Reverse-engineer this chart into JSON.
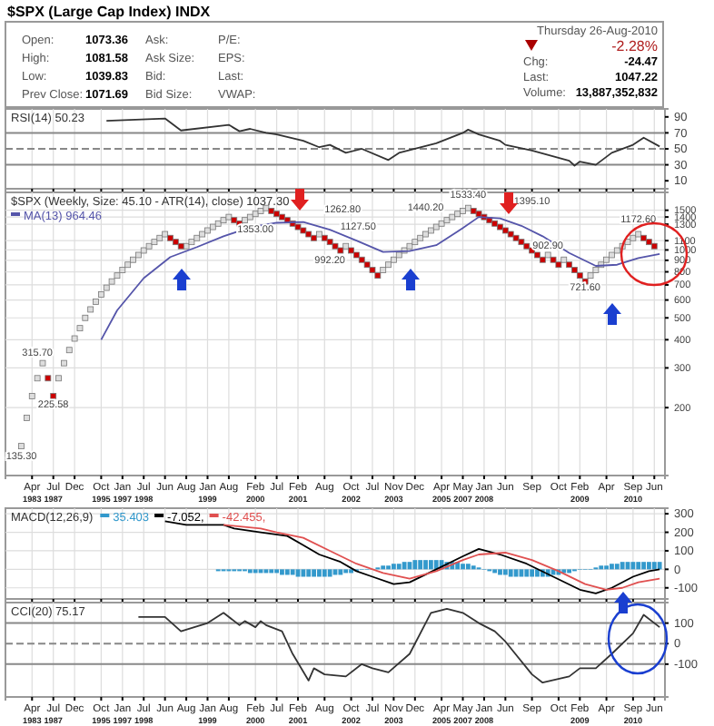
{
  "chart_data": [
    {
      "type": "other",
      "title": "$SPX (Large Cap Index) INDX",
      "annotations": [
        "Open:",
        "1073.36",
        "High:",
        "1081.58",
        "Low:",
        "1039.83",
        "Prev Close:",
        "1071.69",
        "Ask:",
        "Ask Size:",
        "Bid:",
        "Bid Size:",
        "P/E:",
        "EPS:",
        "Last:",
        "VWAP:",
        "Thursday 26-Aug-2010",
        "-2.28%",
        "Chg:",
        "-24.47",
        "Last:",
        "1047.22",
        "Volume:",
        "13,887,352,832"
      ]
    },
    {
      "type": "line",
      "title": "RSI(14) 50.23",
      "grid": "x",
      "tick_labels": "y",
      "ylim": [
        0,
        100
      ],
      "yticks": [
        10,
        30,
        50,
        70,
        90
      ],
      "ref_lines": [
        {
          "axis": "y",
          "value": 70,
          "color": "#888888",
          "line_style": "solid"
        },
        {
          "axis": "y",
          "value": 50,
          "color": "#888888",
          "line_style": "dashed"
        },
        {
          "axis": "y",
          "value": 30,
          "color": "#888888",
          "line_style": "solid"
        }
      ],
      "series": [
        {
          "color": "#333333",
          "values": [
            null,
            null,
            null,
            null,
            null,
            null,
            null,
            null,
            null,
            null,
            null,
            null,
            null,
            null,
            null,
            null,
            null,
            null,
            85,
            null,
            null,
            null,
            null,
            null,
            null,
            null,
            null,
            null,
            null,
            88,
            null,
            null,
            73,
            null,
            null,
            null,
            null,
            null,
            null,
            null,
            null,
            80,
            null,
            72,
            null,
            75,
            null,
            null,
            70,
            null,
            68,
            null,
            null,
            null,
            null,
            60,
            null,
            null,
            52,
            null,
            55,
            null,
            null,
            45,
            null,
            null,
            50,
            null,
            null,
            null,
            null,
            36,
            null,
            45,
            null,
            null,
            null,
            null,
            null,
            null,
            57,
            null,
            null,
            null,
            null,
            70,
            74,
            null,
            68,
            null,
            null,
            null,
            60,
            55,
            null,
            null,
            null,
            null,
            48,
            null,
            null,
            null,
            null,
            null,
            null,
            35,
            29,
            34,
            null,
            null,
            30,
            null,
            null,
            45,
            null,
            null,
            null,
            55,
            null,
            64,
            null,
            null,
            53
          ]
        }
      ]
    },
    {
      "type": "scatter",
      "title": "$SPX (Weekly, Size: 45.10 - ATR(14), close) 1037.30",
      "grid": true,
      "log": true,
      "legend": "top left",
      "ylim": [
        100,
        1800
      ],
      "yticks": [
        200,
        300,
        400,
        500,
        600,
        700,
        800,
        900,
        1000,
        1100,
        1300,
        1400,
        1500
      ],
      "categories": [
        null,
        null,
        null,
        null,
        "Apr 1983",
        null,
        null,
        null,
        "Jul 1987",
        null,
        null,
        null,
        "Dec",
        null,
        null,
        null,
        null,
        "Oct 1995",
        null,
        null,
        null,
        "Jan 1997",
        null,
        null,
        null,
        "Jul 1998",
        null,
        null,
        null,
        "Jun",
        null,
        null,
        null,
        "Aug",
        null,
        null,
        null,
        "Jan 1999",
        null,
        null,
        null,
        "Aug",
        null,
        null,
        null,
        null,
        "Feb 2000",
        null,
        null,
        null,
        "Jul",
        null,
        null,
        null,
        "Feb 2001",
        null,
        null,
        null,
        null,
        "Aug",
        null,
        null,
        null,
        null,
        "Oct 2002",
        null,
        null,
        null,
        "Jul",
        null,
        null,
        null,
        "Nov 2003",
        null,
        null,
        null,
        "Dec",
        null,
        null,
        null,
        null,
        "Apr 2005",
        null,
        null,
        null,
        "May 2007",
        null,
        null,
        null,
        "Jan 2008",
        null,
        null,
        null,
        "Jun",
        null,
        null,
        null,
        null,
        "Sep",
        null,
        null,
        null,
        null,
        "Oct",
        null,
        null,
        null,
        "Feb 2009",
        null,
        null,
        null,
        null,
        "Apr",
        null,
        null,
        null,
        null,
        "Sep 2010",
        null,
        null,
        null,
        "Jun",
        null
      ],
      "annotations": [
        "135.30",
        "315.70",
        "225.58",
        "1353.00",
        "1262.80",
        "1127.50",
        "992.20",
        "1533.40",
        "1440.20",
        "1395.10",
        "902.90",
        "721.60",
        "1172.60"
      ],
      "series": [
        {
          "type": "scatter",
          "marker": "square",
          "color": "#dddddd",
          "values": [
            null,
            null,
            135,
            180,
            225,
            270,
            315,
            null,
            null,
            270,
            315,
            360,
            405,
            450,
            500,
            545,
            590,
            635,
            680,
            725,
            770,
            815,
            860,
            905,
            950,
            995,
            1040,
            1085,
            1130,
            1175,
            null,
            null,
            null,
            1040,
            1085,
            1130,
            1175,
            1220,
            1265,
            1310,
            1355,
            1400,
            null,
            null,
            1355,
            1400,
            1445,
            1490,
            1535,
            null,
            null,
            null,
            null,
            null,
            null,
            null,
            null,
            null,
            1175,
            null,
            null,
            null,
            null,
            1040,
            null,
            null,
            null,
            null,
            null,
            null,
            815,
            860,
            905,
            950,
            995,
            1040,
            1085,
            1130,
            1175,
            1220,
            1265,
            1310,
            1355,
            1400,
            1445,
            1490,
            1535,
            null,
            null,
            null,
            null,
            null,
            null,
            null,
            null,
            null,
            null,
            null,
            null,
            null,
            null,
            950,
            null,
            null,
            905,
            null,
            null,
            null,
            null,
            770,
            815,
            860,
            905,
            950,
            995,
            1040,
            1085,
            1130,
            1175,
            null,
            null,
            null,
            null
          ]
        },
        {
          "type": "scatter",
          "marker": "square",
          "color": "#cc0000",
          "values": [
            null,
            null,
            null,
            null,
            null,
            null,
            null,
            270,
            225,
            null,
            null,
            null,
            null,
            null,
            null,
            null,
            null,
            null,
            null,
            null,
            null,
            null,
            null,
            null,
            null,
            null,
            null,
            null,
            null,
            null,
            1130,
            1085,
            1040,
            null,
            null,
            null,
            null,
            null,
            null,
            null,
            null,
            null,
            1355,
            1310,
            null,
            null,
            null,
            null,
            null,
            1490,
            1445,
            1400,
            1355,
            1310,
            1265,
            1220,
            1175,
            1130,
            null,
            1130,
            1085,
            1040,
            995,
            null,
            995,
            950,
            905,
            860,
            815,
            770,
            null,
            null,
            null,
            null,
            null,
            null,
            null,
            null,
            null,
            null,
            null,
            null,
            null,
            null,
            null,
            null,
            null,
            1490,
            1445,
            1400,
            1355,
            1310,
            1265,
            1220,
            1175,
            1130,
            1085,
            1040,
            995,
            950,
            905,
            null,
            905,
            860,
            null,
            860,
            815,
            770,
            725,
            null,
            null,
            null,
            null,
            null,
            null,
            null,
            null,
            null,
            null,
            1130,
            1085,
            1040,
            null
          ]
        },
        {
          "type": "line",
          "name": "MA(13) 964.46",
          "color": "#5555aa",
          "values": [
            null,
            null,
            null,
            null,
            null,
            null,
            null,
            null,
            null,
            null,
            null,
            null,
            null,
            null,
            null,
            null,
            null,
            400,
            null,
            null,
            540,
            null,
            null,
            null,
            null,
            750,
            null,
            null,
            null,
            null,
            930,
            null,
            null,
            null,
            null,
            1030,
            null,
            null,
            null,
            null,
            1150,
            null,
            null,
            null,
            null,
            1260,
            null,
            null,
            null,
            null,
            1320,
            null,
            null,
            null,
            null,
            1330,
            null,
            null,
            null,
            null,
            1230,
            null,
            null,
            null,
            null,
            1100,
            null,
            null,
            null,
            null,
            980,
            null,
            null,
            null,
            null,
            990,
            null,
            null,
            null,
            null,
            1050,
            null,
            null,
            null,
            null,
            1250,
            null,
            null,
            1400,
            null,
            null,
            null,
            1380,
            null,
            null,
            null,
            1280,
            null,
            null,
            null,
            1150,
            null,
            null,
            null,
            null,
            970,
            null,
            null,
            null,
            null,
            850,
            null,
            null,
            null,
            860,
            null,
            null,
            null,
            920,
            null,
            null,
            null,
            960
          ]
        }
      ]
    },
    {
      "type": "line",
      "title": "MACD(12,26,9)",
      "grid": true,
      "tick_labels": "y",
      "legend": "top left",
      "ylim": [
        -160,
        330
      ],
      "yticks": [
        -100,
        0,
        100,
        200,
        300
      ],
      "series": [
        {
          "type": "bar",
          "name": "35.403",
          "color": "#3399cc",
          "values": [
            null,
            null,
            null,
            null,
            null,
            null,
            null,
            null,
            null,
            null,
            null,
            null,
            null,
            null,
            null,
            null,
            null,
            null,
            null,
            null,
            null,
            null,
            null,
            null,
            null,
            null,
            null,
            null,
            null,
            null,
            null,
            null,
            null,
            null,
            null,
            null,
            null,
            null,
            null,
            -10,
            -10,
            -10,
            -10,
            -10,
            -10,
            -20,
            -20,
            -20,
            -20,
            -20,
            -20,
            -30,
            -30,
            -30,
            -40,
            -40,
            -40,
            -40,
            -40,
            -40,
            -40,
            -30,
            -30,
            -20,
            -20,
            -10,
            0,
            0,
            0,
            10,
            20,
            20,
            30,
            30,
            40,
            40,
            50,
            50,
            50,
            50,
            50,
            50,
            40,
            40,
            40,
            30,
            30,
            20,
            10,
            0,
            -10,
            -20,
            -30,
            -30,
            -40,
            -40,
            -40,
            -40,
            -40,
            -40,
            -40,
            -40,
            -30,
            -30,
            -20,
            -20,
            -10,
            0,
            0,
            0,
            10,
            20,
            20,
            30,
            30,
            40,
            40,
            40,
            40,
            40,
            40,
            40,
            40
          ]
        },
        {
          "type": "line",
          "name": "-7.052,",
          "color": "#000000",
          "values": [
            null,
            null,
            null,
            null,
            null,
            null,
            null,
            null,
            null,
            null,
            null,
            null,
            null,
            null,
            null,
            null,
            null,
            null,
            null,
            null,
            null,
            null,
            null,
            null,
            null,
            null,
            null,
            null,
            null,
            260,
            null,
            null,
            null,
            240,
            null,
            null,
            null,
            null,
            null,
            null,
            240,
            null,
            220,
            null,
            null,
            null,
            null,
            200,
            null,
            null,
            null,
            null,
            180,
            null,
            null,
            130,
            null,
            null,
            80,
            null,
            null,
            null,
            40,
            null,
            null,
            -10,
            null,
            null,
            -40,
            null,
            null,
            null,
            -80,
            null,
            null,
            -70,
            null,
            null,
            null,
            null,
            0,
            null,
            null,
            null,
            null,
            70,
            null,
            null,
            110,
            null,
            null,
            null,
            80,
            null,
            null,
            null,
            null,
            30,
            null,
            null,
            null,
            null,
            -40,
            null,
            null,
            null,
            null,
            -110,
            null,
            null,
            -130,
            null,
            null,
            -100,
            null,
            null,
            null,
            -40,
            null,
            null,
            -10,
            null,
            0
          ]
        },
        {
          "type": "line",
          "name": "-42.455,",
          "color": "#e05050",
          "values": [
            null,
            null,
            null,
            null,
            null,
            null,
            null,
            null,
            null,
            null,
            null,
            null,
            null,
            null,
            null,
            null,
            null,
            null,
            null,
            null,
            null,
            null,
            null,
            null,
            null,
            null,
            null,
            null,
            null,
            null,
            null,
            null,
            null,
            null,
            null,
            null,
            null,
            null,
            null,
            null,
            240,
            null,
            null,
            null,
            null,
            null,
            null,
            220,
            null,
            null,
            200,
            null,
            null,
            null,
            null,
            170,
            null,
            null,
            null,
            null,
            100,
            null,
            null,
            null,
            null,
            30,
            null,
            null,
            null,
            null,
            -20,
            null,
            null,
            null,
            null,
            -50,
            null,
            null,
            null,
            null,
            -10,
            null,
            null,
            null,
            null,
            50,
            null,
            null,
            80,
            null,
            null,
            null,
            null,
            90,
            null,
            null,
            null,
            null,
            50,
            null,
            null,
            null,
            null,
            -10,
            null,
            null,
            null,
            null,
            -80,
            null,
            null,
            null,
            -110,
            null,
            null,
            -100,
            null,
            null,
            -70,
            null,
            null,
            null,
            -50
          ]
        }
      ]
    },
    {
      "type": "line",
      "title": "CCI(20) 75.17",
      "grid": "x",
      "ylim": [
        -260,
        200
      ],
      "yticks": [
        -100,
        0,
        100
      ],
      "categories": [
        null,
        null,
        null,
        null,
        "Apr 1983",
        null,
        null,
        null,
        "Jul 1987",
        null,
        null,
        null,
        "Dec",
        null,
        null,
        null,
        null,
        "Oct 1995",
        null,
        null,
        null,
        "Jan 1997",
        null,
        null,
        null,
        "Jul 1998",
        null,
        null,
        null,
        "Jun",
        null,
        null,
        null,
        "Aug",
        null,
        null,
        null,
        "Jan 1999",
        null,
        null,
        null,
        "Aug",
        null,
        null,
        null,
        null,
        "Feb 2000",
        null,
        null,
        null,
        "Jul",
        null,
        null,
        null,
        "Feb 2001",
        null,
        null,
        null,
        null,
        "Aug",
        null,
        null,
        null,
        null,
        "Oct 2002",
        null,
        null,
        null,
        "Jul",
        null,
        null,
        null,
        "Nov 2003",
        null,
        null,
        null,
        "Dec",
        null,
        null,
        null,
        null,
        "Apr 2005",
        null,
        null,
        null,
        "May 2007",
        null,
        null,
        null,
        "Jan 2008",
        null,
        null,
        null,
        "Jun",
        null,
        null,
        null,
        null,
        "Sep",
        null,
        null,
        null,
        null,
        "Oct",
        null,
        null,
        null,
        "Feb 2009",
        null,
        null,
        null,
        null,
        "Apr",
        null,
        null,
        null,
        null,
        "Sep 2010",
        null,
        null,
        null,
        "Jun",
        null
      ],
      "ref_lines": [
        {
          "axis": "y",
          "value": 100,
          "color": "#888888",
          "line_style": "solid"
        },
        {
          "axis": "y",
          "value": 0,
          "color": "#888888",
          "line_style": "dashed"
        },
        {
          "axis": "y",
          "value": -100,
          "color": "#888888",
          "line_style": "solid"
        }
      ],
      "series": [
        {
          "color": "#333333",
          "values": [
            null,
            null,
            null,
            null,
            null,
            null,
            null,
            null,
            null,
            null,
            null,
            null,
            null,
            null,
            null,
            null,
            null,
            null,
            null,
            null,
            null,
            null,
            null,
            null,
            130,
            null,
            null,
            null,
            null,
            130,
            null,
            null,
            60,
            null,
            null,
            null,
            null,
            100,
            null,
            null,
            150,
            null,
            null,
            90,
            110,
            null,
            80,
            110,
            90,
            null,
            null,
            60,
            null,
            -50,
            null,
            null,
            -180,
            -120,
            null,
            -150,
            null,
            null,
            null,
            -160,
            null,
            null,
            -100,
            null,
            -120,
            null,
            null,
            -140,
            null,
            null,
            null,
            -50,
            null,
            null,
            null,
            150,
            null,
            null,
            170,
            null,
            null,
            150,
            null,
            null,
            100,
            null,
            null,
            60,
            null,
            10,
            null,
            null,
            null,
            null,
            -150,
            null,
            -190,
            null,
            null,
            null,
            null,
            -160,
            null,
            -120,
            null,
            null,
            -120,
            null,
            null,
            -50,
            null,
            null,
            null,
            50,
            null,
            140,
            null,
            null,
            80
          ]
        }
      ]
    }
  ]
}
